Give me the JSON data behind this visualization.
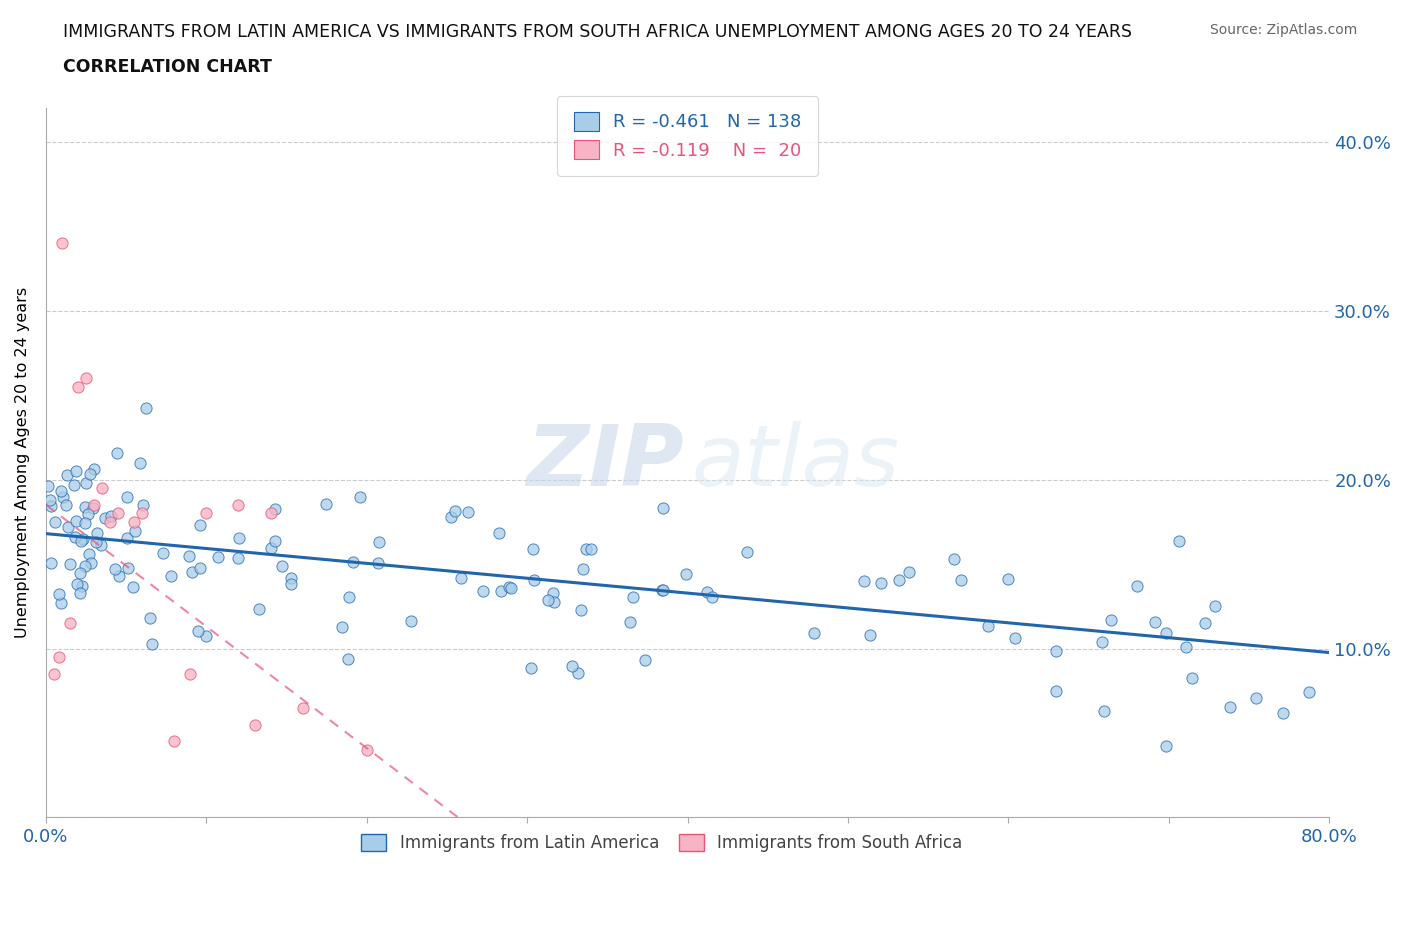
{
  "title_line1": "IMMIGRANTS FROM LATIN AMERICA VS IMMIGRANTS FROM SOUTH AFRICA UNEMPLOYMENT AMONG AGES 20 TO 24 YEARS",
  "title_line2": "CORRELATION CHART",
  "source": "Source: ZipAtlas.com",
  "ylabel": "Unemployment Among Ages 20 to 24 years",
  "xlim": [
    0,
    0.8
  ],
  "ylim": [
    0,
    0.42
  ],
  "legend_r1": "-0.461",
  "legend_n1": "138",
  "legend_r2": "-0.119",
  "legend_n2": "20",
  "color_blue": "#a8cde8",
  "color_pink": "#f8b4c4",
  "color_blue_dark": "#2166ac",
  "color_pink_dark": "#e8547a",
  "legend_label1": "Immigrants from Latin America",
  "legend_label2": "Immigrants from South Africa",
  "watermark_zip": "ZIP",
  "watermark_atlas": "atlas",
  "blue_intercept": 0.168,
  "blue_slope": -0.088,
  "pink_intercept": 0.185,
  "pink_slope": -0.72
}
